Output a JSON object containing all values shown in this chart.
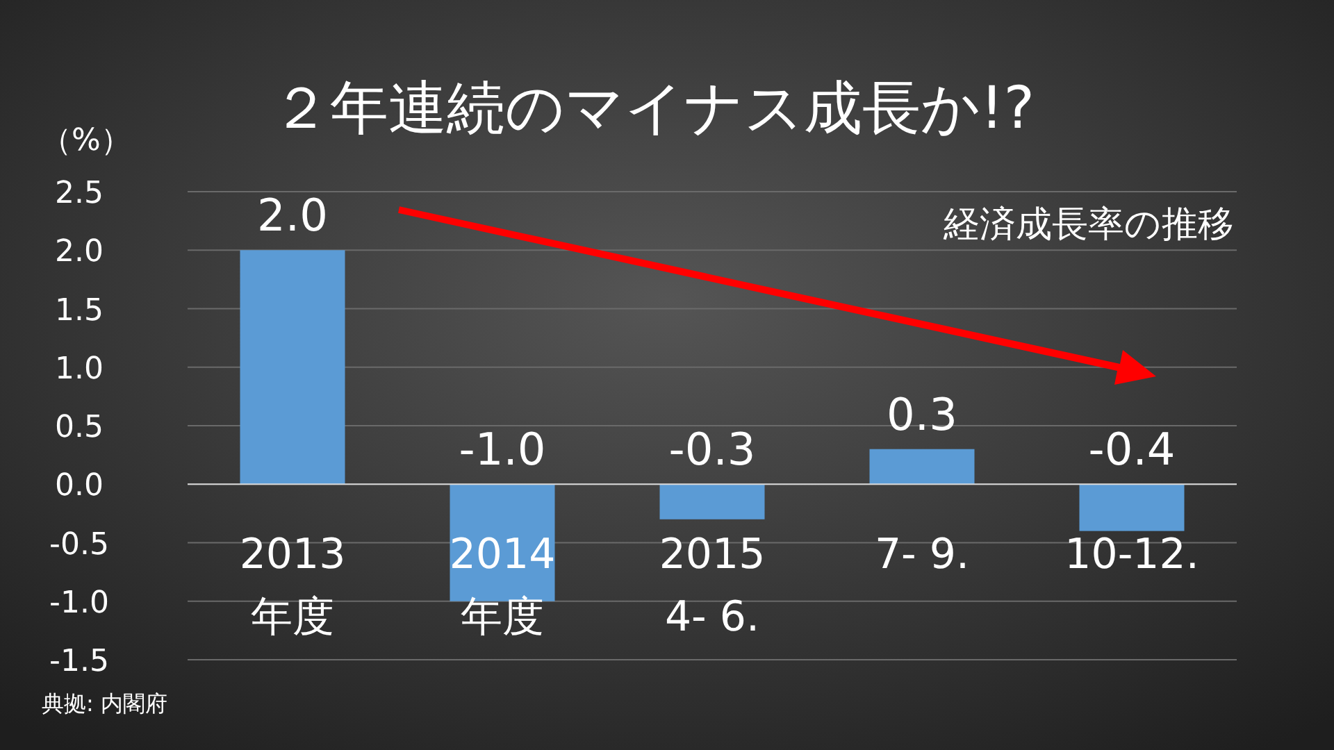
{
  "chart_data": {
    "type": "bar",
    "title": "２年連続のマイナス成長か!?",
    "ylabel": "（%）",
    "categories": [
      "2013\n年度",
      "2014\n年度",
      "2015\n4- 6.",
      "7- 9.",
      "10-12."
    ],
    "values": [
      2.0,
      -1.0,
      -0.3,
      0.3,
      -0.4
    ],
    "value_labels": [
      "2.0",
      "-1.0",
      "-0.3",
      "0.3",
      "-0.4"
    ],
    "color": "#5b9bd5",
    "ylim": [
      -1.5,
      2.5
    ],
    "yticks": [
      {
        "value": -1.5,
        "label": "-1.5"
      },
      {
        "value": -1,
        "label": "-1.0"
      },
      {
        "value": -0.5,
        "label": "-0.5"
      },
      {
        "value": 0,
        "label": "0.0"
      },
      {
        "value": 0.5,
        "label": "0.5"
      },
      {
        "value": 1,
        "label": "1.0"
      },
      {
        "value": 1.5,
        "label": "1.5"
      },
      {
        "value": 2,
        "label": "2.0"
      },
      {
        "value": 2.5,
        "label": "2.5"
      }
    ],
    "grid": "y",
    "annotations": [
      "経済成長率の推移",
      "典拠: 内閣府"
    ]
  }
}
